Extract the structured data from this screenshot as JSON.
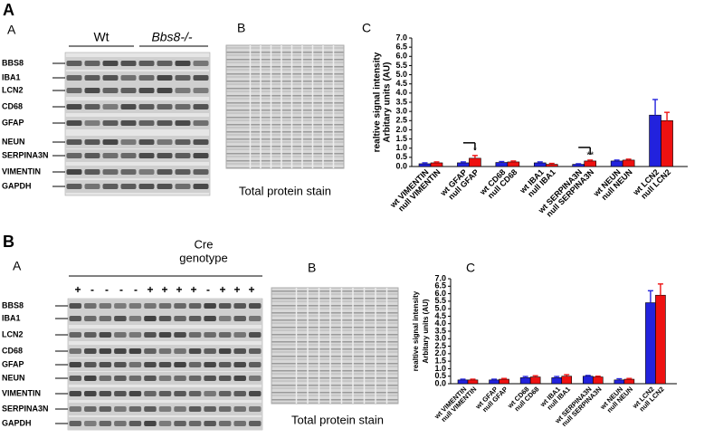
{
  "figure": {
    "panels": [
      {
        "label": "A",
        "blot": {
          "label": "A",
          "groups": [
            "Wt",
            "Bbs8-/-"
          ],
          "rows": [
            "BBS8",
            "IBA1",
            "LCN2",
            "CD68",
            "GFAP",
            "NEUN",
            "SERPINA3N",
            "VIMENTIN",
            "GAPDH"
          ]
        },
        "stain": {
          "label": "B",
          "caption": "Total protein stain"
        },
        "chart_label": "C"
      },
      {
        "label": "B",
        "blot": {
          "label": "A",
          "header": [
            "Cre",
            "genotype"
          ],
          "genotypes": [
            "+",
            "-",
            "-",
            "-",
            "-",
            "+",
            "+",
            "+",
            "+",
            "-",
            "+",
            "+",
            "+"
          ],
          "rows": [
            "BBS8",
            "IBA1",
            "LCN2",
            "CD68",
            "GFAP",
            "NEUN",
            "VIMENTIN",
            "SERPINA3N",
            "GAPDH"
          ]
        },
        "stain": {
          "label": "B",
          "caption": "Total protein stain"
        },
        "chart_label": "C"
      }
    ]
  },
  "chart_data": [
    {
      "type": "bar",
      "ylabel": [
        "realtive signal intensity",
        "Arbitary units (AU)"
      ],
      "categories": [
        "wt VIMENTIN",
        "null VIMENTIN",
        "wt GFAP",
        "null GFAP",
        "wt CD68",
        "null CD68",
        "wt IBA1",
        "null IBA1",
        "wt SERPINA3N",
        "null SERPINA3N",
        "wt NEUN",
        "null NEUN",
        "wt LCN2",
        "null LCN2"
      ],
      "values": [
        0.15,
        0.2,
        0.2,
        0.45,
        0.22,
        0.25,
        0.2,
        0.12,
        0.12,
        0.3,
        0.3,
        0.35,
        2.8,
        2.5
      ],
      "errors": [
        0.05,
        0.05,
        0.05,
        0.15,
        0.05,
        0.05,
        0.05,
        0.05,
        0.03,
        0.05,
        0.05,
        0.05,
        0.85,
        0.45
      ],
      "colors": [
        "#2222dd",
        "#ee1111",
        "#2222dd",
        "#ee1111",
        "#2222dd",
        "#ee1111",
        "#2222dd",
        "#ee1111",
        "#2222dd",
        "#ee1111",
        "#2222dd",
        "#ee1111",
        "#2222dd",
        "#ee1111"
      ],
      "annotations": [
        "*",
        "**"
      ],
      "ylim": [
        0,
        7
      ],
      "yticks": [
        {
          "value": 0,
          "label": "0.0"
        },
        0.5,
        {
          "value": 1,
          "label": "1.0"
        },
        1.5,
        {
          "value": 2,
          "label": "2.0"
        },
        2.5,
        {
          "value": 3,
          "label": "3.0"
        },
        3.5,
        {
          "value": 4,
          "label": "4.0"
        },
        4.5,
        {
          "value": 5,
          "label": "5.0"
        },
        5.5,
        {
          "value": 6,
          "label": "6.0"
        },
        6.5,
        {
          "value": 7,
          "label": "7.0"
        }
      ]
    },
    {
      "type": "bar",
      "ylabel": [
        "realtive signal intensity",
        "Arbitary units (AU)"
      ],
      "categories": [
        "wt VIMENTIN",
        "null VIMENTIN",
        "wt GFAP",
        "null GFAP",
        "wt CD68",
        "null CD68",
        "wt IBA1",
        "null IBA1",
        "wt SERPINA3N",
        "null SERPINA3N",
        "wt NEUN",
        "null NEUN",
        "wt LCN2",
        "null LCN2"
      ],
      "values": [
        0.25,
        0.25,
        0.25,
        0.3,
        0.4,
        0.45,
        0.4,
        0.5,
        0.5,
        0.45,
        0.25,
        0.3,
        5.4,
        5.9
      ],
      "errors": [
        0.05,
        0.05,
        0.05,
        0.05,
        0.08,
        0.08,
        0.08,
        0.1,
        0.05,
        0.05,
        0.08,
        0.05,
        0.8,
        0.75
      ],
      "colors": [
        "#2222dd",
        "#ee1111",
        "#2222dd",
        "#ee1111",
        "#2222dd",
        "#ee1111",
        "#2222dd",
        "#ee1111",
        "#2222dd",
        "#ee1111",
        "#2222dd",
        "#ee1111",
        "#2222dd",
        "#ee1111"
      ],
      "ylim": [
        0,
        7
      ],
      "yticks": [
        {
          "value": 0,
          "label": "0.0"
        },
        0.5,
        {
          "value": 1,
          "label": "1.0"
        },
        1.5,
        {
          "value": 2,
          "label": "2.0"
        },
        2.5,
        {
          "value": 3,
          "label": "3.0"
        },
        3.5,
        {
          "value": 4,
          "label": "4.0"
        },
        4.5,
        {
          "value": 5,
          "label": "5.0"
        },
        5.5,
        {
          "value": 6,
          "label": "6.0"
        },
        6.5,
        {
          "value": 7,
          "label": "7.0"
        }
      ]
    }
  ]
}
